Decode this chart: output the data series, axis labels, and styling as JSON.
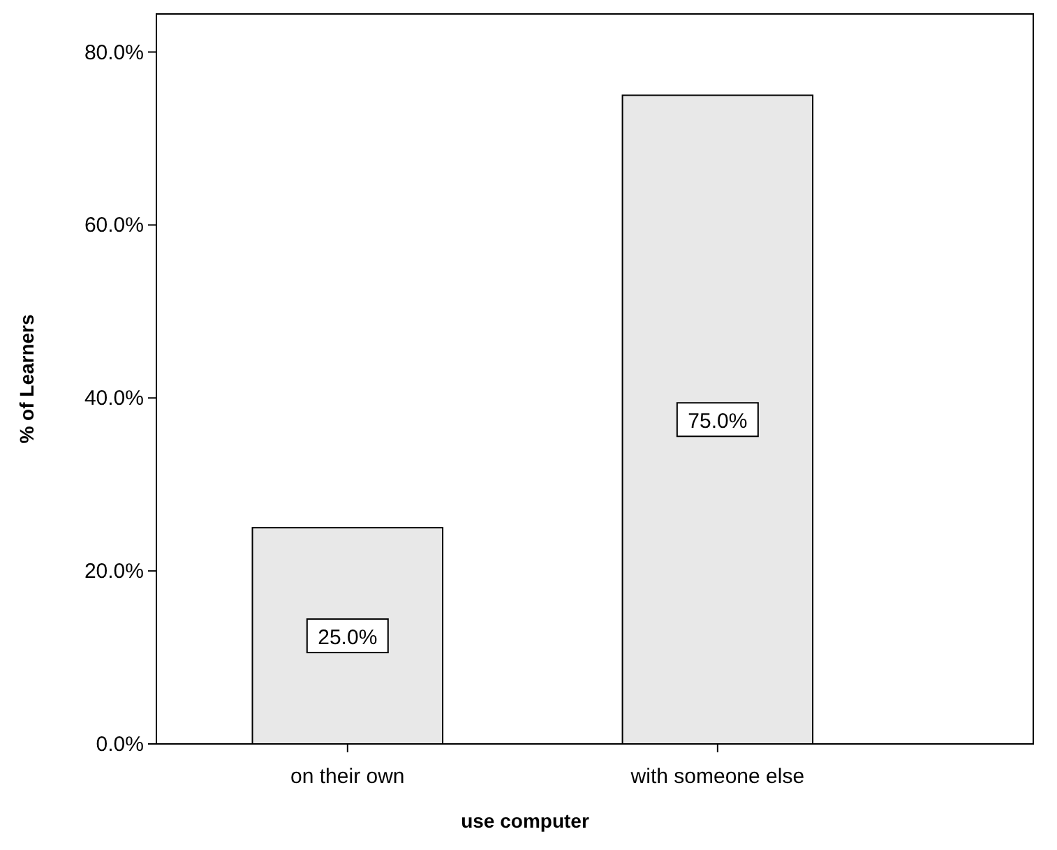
{
  "chart_data": {
    "type": "bar",
    "xlabel": "use computer",
    "ylabel": "% of Learners",
    "categories": [
      "on their own",
      "with someone else"
    ],
    "values": [
      25.0,
      75.0
    ],
    "value_labels": [
      "25.0%",
      "75.0%"
    ],
    "color": "#e8e8e8",
    "ylim": [
      0,
      84.4
    ],
    "yticks": [
      {
        "value": 0,
        "label": "0.0%"
      },
      {
        "value": 20,
        "label": "20.0%"
      },
      {
        "value": 40,
        "label": "40.0%"
      },
      {
        "value": 60,
        "label": "60.0%"
      },
      {
        "value": 80,
        "label": "80.0%"
      }
    ],
    "grid": false
  }
}
